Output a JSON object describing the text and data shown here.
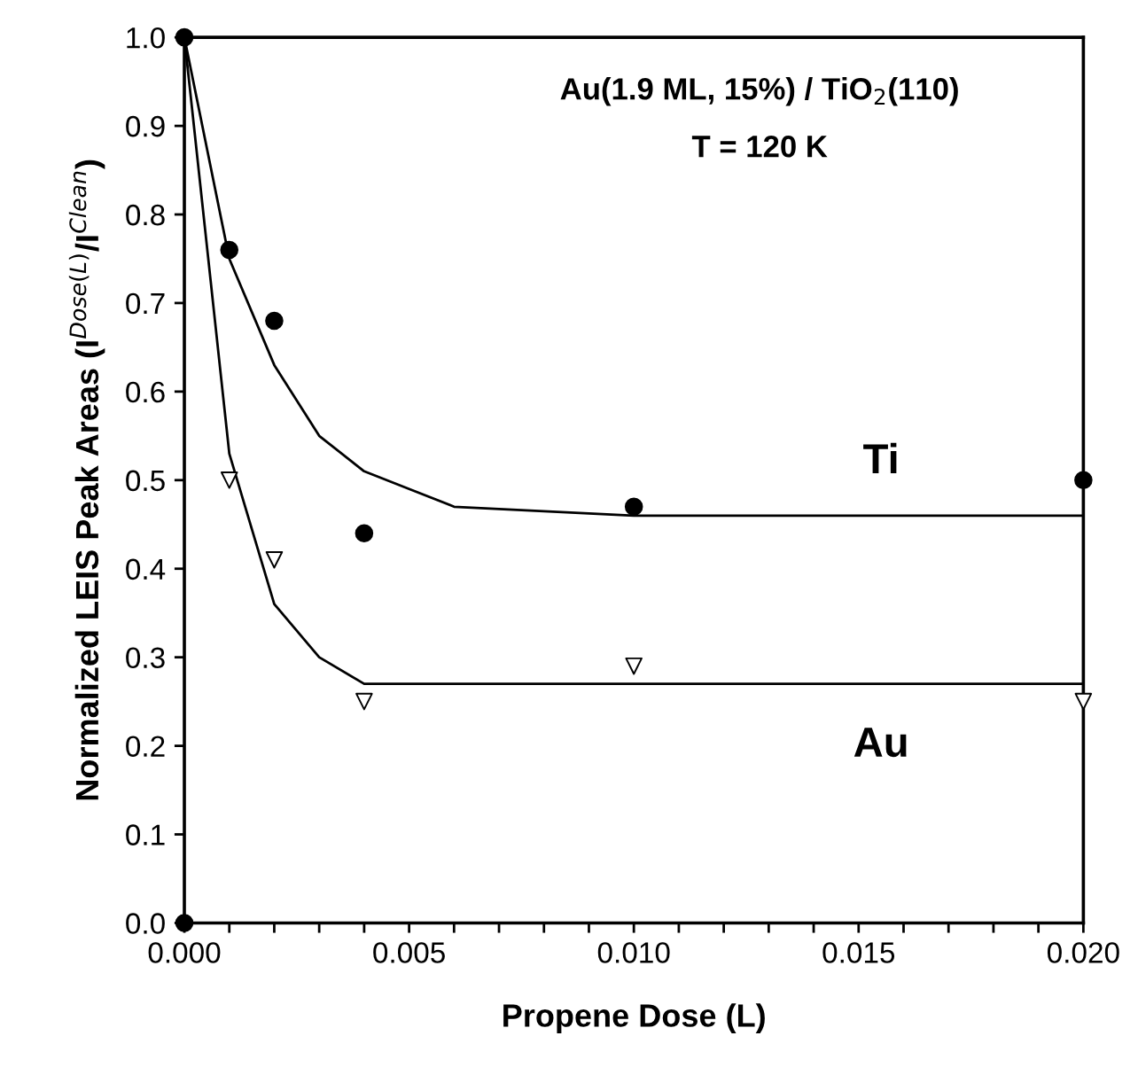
{
  "chart_data": {
    "type": "scatter",
    "xlabel": "Propene Dose (L)",
    "ylabel": "Normalized LEIS Peak Areas (I$^{Dose(L)}$/I$^{Clean}$)",
    "xlim": [
      0,
      0.02
    ],
    "ylim": [
      0,
      1.0
    ],
    "xticks": [
      "0.000",
      {
        "value": 0.001,
        "label": null
      },
      {
        "value": 0.002,
        "label": null
      },
      {
        "value": 0.003,
        "label": null
      },
      {
        "value": 0.004,
        "label": null
      },
      {
        "value": 0.005,
        "label": "0.005"
      },
      {
        "value": 0.006,
        "label": null
      },
      {
        "value": 0.007,
        "label": null
      },
      {
        "value": 0.008,
        "label": null
      },
      {
        "value": 0.009,
        "label": null
      },
      {
        "value": 0.01,
        "label": "0.010"
      },
      {
        "value": 0.011,
        "label": null
      },
      {
        "value": 0.012,
        "label": null
      },
      {
        "value": 0.013,
        "label": null
      },
      {
        "value": 0.014,
        "label": null
      },
      {
        "value": 0.015,
        "label": "0.015"
      },
      {
        "value": 0.016,
        "label": null
      },
      {
        "value": 0.017,
        "label": null
      },
      {
        "value": 0.018,
        "label": null
      },
      {
        "value": 0.019,
        "label": null
      },
      {
        "value": 0.02,
        "label": "0.020"
      }
    ],
    "yticks": [
      {
        "value": 0,
        "label": "0.0"
      },
      0.1,
      0.2,
      0.3,
      0.4,
      0.5,
      0.6,
      0.7,
      0.8,
      0.9,
      {
        "value": 1,
        "label": "1.0"
      }
    ],
    "grid": false,
    "legend": false,
    "series": [
      {
        "type": "line",
        "color": "#000000",
        "marker": "none",
        "x": [
          0,
          0.001,
          0.002,
          0.003,
          0.004,
          0.005,
          0.006,
          0.01,
          0.02
        ],
        "values": [
          1.0,
          0.75,
          0.63,
          0.55,
          0.51,
          0.49,
          0.47,
          0.46,
          0.46
        ]
      },
      {
        "type": "line",
        "color": "#000000",
        "marker": "none",
        "x": [
          0,
          0.001,
          0.002,
          0.003,
          0.004,
          0.005,
          0.007,
          0.02
        ],
        "values": [
          1.0,
          0.53,
          0.36,
          0.3,
          0.27,
          0.27,
          0.27,
          0.27
        ]
      },
      {
        "color": "#000000",
        "marker": "triangle",
        "x": [
          0.001,
          0.002,
          0.004,
          0.01,
          0.02
        ],
        "values": [
          0.5,
          0.41,
          0.25,
          0.29,
          0.25
        ]
      },
      {
        "color": "#000000",
        "marker": "circle",
        "x": [
          0,
          0,
          0.001,
          0.002,
          0.004,
          0.01,
          0.02
        ],
        "values": [
          1.0,
          0,
          0.76,
          0.68,
          0.44,
          0.47,
          0.5
        ]
      }
    ],
    "annotations": [
      "Au(1.9 ML, 15%) / TiO$_{2}$(110)",
      "T = 120 K",
      "Ti",
      "Au"
    ]
  }
}
